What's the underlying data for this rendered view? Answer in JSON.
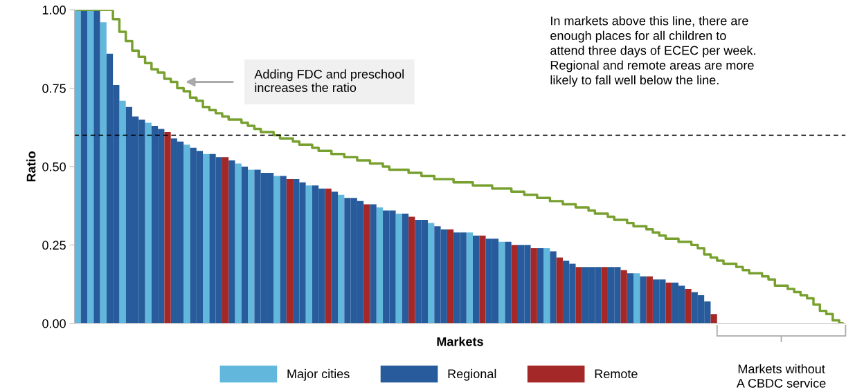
{
  "chart_data": {
    "type": "bar",
    "xlabel": "Markets",
    "ylabel": "Ratio",
    "categories": [
      null,
      null,
      null,
      null,
      null,
      null,
      null,
      null,
      null,
      null,
      null,
      null,
      null,
      null,
      null,
      null,
      null,
      null,
      null,
      null,
      null,
      null,
      null,
      null,
      null,
      null,
      null,
      null,
      null,
      null,
      null,
      null,
      null,
      null,
      null,
      null,
      null,
      null,
      null,
      null,
      null,
      null,
      null,
      null,
      null,
      null,
      null,
      null,
      null,
      null,
      null,
      null,
      null,
      null,
      null,
      null,
      null,
      null,
      null,
      null,
      null,
      null,
      null,
      null,
      null,
      null,
      null,
      null,
      null,
      null,
      null,
      null,
      null,
      null,
      null,
      null,
      null,
      null,
      null,
      null,
      null,
      null,
      null,
      null,
      null,
      null,
      null,
      null,
      null,
      null,
      null,
      null,
      null,
      null,
      null,
      null,
      null,
      null,
      null,
      null,
      null,
      null,
      null,
      null,
      null,
      null,
      null,
      null,
      null,
      null,
      null,
      null,
      null,
      null,
      null,
      null,
      null,
      null,
      null,
      null
    ],
    "ylim": [
      0,
      1
    ],
    "yticks": [
      {
        "value": 0,
        "label": "0.00"
      },
      {
        "value": 0.25,
        "label": "0.25"
      },
      {
        "value": 0.5,
        "label": "0.50"
      },
      {
        "value": 0.75,
        "label": "0.75"
      },
      {
        "value": 1,
        "label": "1.00"
      }
    ],
    "grid": false,
    "legend": "bottom",
    "tick_labels": "y",
    "ref_lines": [
      {
        "axis": "y",
        "value": 0.6,
        "color": "#000000",
        "line_style": "dashed"
      }
    ],
    "annotations": [
      "Adding FDC and preschool\nincreases the ratio",
      "In markets above this line, there are\nenough places for all children to\nattend three days of ECEC per week.\nRegional and remote areas are more\nlikely to fall well below the line.",
      "Markets without\nA CBDC service"
    ],
    "series": [
      {
        "name": "Major cities",
        "color": "#62b8dc",
        "values": [
          1.0,
          null,
          1.0,
          null,
          0.96,
          null,
          null,
          0.71,
          null,
          null,
          null,
          0.64,
          null,
          null,
          null,
          null,
          null,
          0.57,
          null,
          null,
          0.54,
          null,
          null,
          null,
          null,
          0.51,
          null,
          0.49,
          null,
          null,
          null,
          0.47,
          null,
          null,
          null,
          null,
          0.44,
          null,
          null,
          null,
          null,
          0.41,
          null,
          null,
          null,
          null,
          null,
          0.37,
          null,
          null,
          0.35,
          null,
          null,
          null,
          null,
          0.32,
          null,
          null,
          null,
          null,
          null,
          0.29,
          null,
          null,
          null,
          null,
          0.26,
          null,
          null,
          null,
          null,
          null,
          null,
          0.24,
          null,
          null,
          null,
          null,
          null,
          null,
          null,
          null,
          null,
          null,
          null,
          null,
          null,
          0.16,
          null,
          null,
          null,
          null,
          null,
          null,
          null,
          null,
          null,
          null,
          null,
          null,
          null,
          null,
          null,
          null,
          null,
          null,
          null,
          null,
          null,
          null,
          null,
          null,
          null,
          null,
          null,
          null,
          null,
          null,
          null,
          null
        ]
      },
      {
        "name": "Regional",
        "color": "#275b9b",
        "values": [
          null,
          1.0,
          null,
          1.0,
          null,
          0.86,
          0.76,
          null,
          0.69,
          0.66,
          0.65,
          null,
          0.63,
          0.62,
          null,
          0.59,
          0.58,
          null,
          0.56,
          0.55,
          null,
          0.54,
          0.53,
          null,
          0.52,
          null,
          0.5,
          null,
          0.49,
          0.48,
          0.48,
          null,
          0.47,
          null,
          0.46,
          0.45,
          null,
          0.44,
          0.43,
          null,
          0.42,
          null,
          0.4,
          0.4,
          0.39,
          null,
          0.38,
          null,
          0.36,
          0.36,
          null,
          0.35,
          null,
          0.33,
          0.33,
          null,
          0.31,
          0.3,
          null,
          0.29,
          0.29,
          null,
          0.28,
          null,
          0.27,
          0.27,
          null,
          0.26,
          null,
          0.25,
          0.25,
          null,
          0.24,
          null,
          0.23,
          null,
          0.2,
          0.19,
          null,
          0.18,
          0.18,
          0.18,
          null,
          0.18,
          0.18,
          null,
          0.16,
          null,
          0.15,
          null,
          0.14,
          0.14,
          null,
          0.13,
          0.12,
          null,
          0.1,
          0.09,
          0.07,
          null,
          null,
          null,
          null,
          null,
          null,
          null,
          null,
          null,
          null,
          null,
          null,
          null,
          null,
          null,
          null,
          null,
          null,
          null,
          null,
          null
        ]
      },
      {
        "name": "Remote",
        "color": "#a52828",
        "values": [
          null,
          null,
          null,
          null,
          null,
          null,
          null,
          null,
          null,
          null,
          null,
          null,
          null,
          null,
          0.61,
          null,
          null,
          null,
          null,
          null,
          null,
          null,
          null,
          0.53,
          null,
          null,
          null,
          null,
          null,
          null,
          null,
          null,
          null,
          0.46,
          null,
          null,
          null,
          null,
          null,
          0.43,
          null,
          null,
          null,
          null,
          null,
          0.38,
          null,
          null,
          null,
          null,
          null,
          null,
          0.34,
          null,
          null,
          null,
          null,
          null,
          0.3,
          null,
          null,
          null,
          null,
          0.28,
          null,
          null,
          null,
          null,
          0.25,
          null,
          null,
          0.24,
          null,
          null,
          null,
          0.21,
          null,
          null,
          0.18,
          null,
          null,
          null,
          0.18,
          null,
          null,
          0.17,
          null,
          null,
          null,
          0.15,
          null,
          null,
          0.13,
          null,
          null,
          0.11,
          null,
          null,
          null,
          0.03,
          null,
          null,
          null,
          null,
          null,
          null,
          null,
          null,
          null,
          null,
          null,
          null,
          null,
          null,
          null,
          null,
          null,
          null,
          null,
          null
        ]
      },
      {
        "type": "step",
        "color": "#77a02f",
        "values": [
          1,
          1,
          1,
          1,
          1,
          1,
          0.97,
          0.93,
          0.9,
          0.87,
          0.85,
          0.83,
          0.81,
          0.8,
          0.78,
          0.77,
          0.75,
          0.74,
          0.72,
          0.71,
          0.69,
          0.68,
          0.67,
          0.66,
          0.65,
          0.65,
          0.64,
          0.63,
          0.62,
          0.61,
          0.61,
          0.6,
          0.59,
          0.59,
          0.58,
          0.57,
          0.57,
          0.56,
          0.55,
          0.55,
          0.54,
          0.54,
          0.53,
          0.53,
          0.52,
          0.52,
          0.51,
          0.51,
          0.5,
          0.49,
          0.49,
          0.49,
          0.48,
          0.48,
          0.47,
          0.47,
          0.46,
          0.46,
          0.46,
          0.45,
          0.45,
          0.45,
          0.44,
          0.44,
          0.44,
          0.43,
          0.43,
          0.43,
          0.42,
          0.42,
          0.41,
          0.41,
          0.4,
          0.4,
          0.39,
          0.39,
          0.38,
          0.38,
          0.37,
          0.37,
          0.36,
          0.35,
          0.35,
          0.34,
          0.33,
          0.33,
          0.32,
          0.31,
          0.31,
          0.3,
          0.29,
          0.28,
          0.27,
          0.27,
          0.26,
          0.26,
          0.25,
          0.24,
          0.22,
          0.21,
          0.2,
          0.19,
          0.19,
          0.18,
          0.17,
          0.16,
          0.16,
          0.15,
          0.14,
          0.12,
          0.12,
          0.11,
          0.1,
          0.09,
          0.08,
          0.06,
          0.04,
          0.03,
          0.01,
          0.0
        ]
      }
    ]
  }
}
